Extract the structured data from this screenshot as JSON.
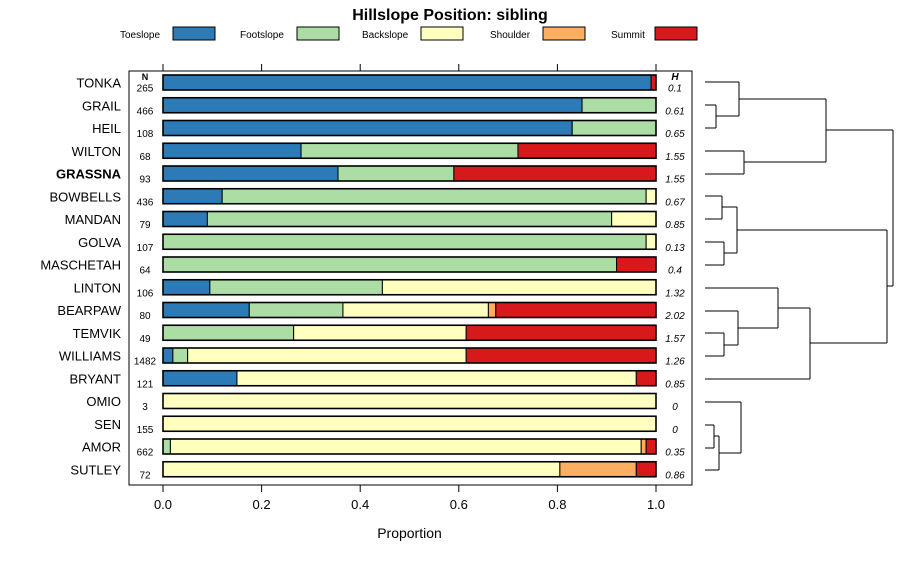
{
  "chart_data": {
    "type": "bar",
    "stacked": true,
    "orientation": "horizontal",
    "title": "Hillslope Position: sibling",
    "xlabel": "Proportion",
    "xlim": [
      0,
      1
    ],
    "x_ticks": [
      "0.0",
      "0.2",
      "0.4",
      "0.6",
      "0.8",
      "1.0"
    ],
    "legend_position": "top",
    "legend": [
      {
        "name": "Toeslope",
        "color": "#2c7bb6"
      },
      {
        "name": "Footslope",
        "color": "#abdda4"
      },
      {
        "name": "Backslope",
        "color": "#ffffbf"
      },
      {
        "name": "Shoulder",
        "color": "#fdae61"
      },
      {
        "name": "Summit",
        "color": "#d7191c"
      }
    ],
    "n_header": "N",
    "h_header": "H",
    "highlight": "GRASSNA",
    "categories": [
      "TONKA",
      "GRAIL",
      "HEIL",
      "WILTON",
      "GRASSNA",
      "BOWBELLS",
      "MANDAN",
      "GOLVA",
      "MASCHETAH",
      "LINTON",
      "BEARPAW",
      "TEMVIK",
      "WILLIAMS",
      "BRYANT",
      "OMIO",
      "SEN",
      "AMOR",
      "SUTLEY"
    ],
    "n": [
      "265",
      "466",
      "108",
      "68",
      "93",
      "436",
      "79",
      "107",
      "64",
      "106",
      "80",
      "49",
      "1482",
      "121",
      "3",
      "155",
      "662",
      "72"
    ],
    "h": [
      "0.1",
      "0.61",
      "0.65",
      "1.55",
      "1.55",
      "0.67",
      "0.85",
      "0.13",
      "0.4",
      "1.32",
      "2.02",
      "1.57",
      "1.26",
      "0.85",
      "0",
      "0",
      "0.35",
      "0.86"
    ],
    "series": [
      {
        "name": "Toeslope",
        "values": [
          0.99,
          0.85,
          0.83,
          0.28,
          0.355,
          0.12,
          0.09,
          0,
          0,
          0.095,
          0.175,
          0,
          0.02,
          0.15,
          0,
          0,
          0,
          0
        ]
      },
      {
        "name": "Footslope",
        "values": [
          0,
          0.15,
          0.17,
          0.44,
          0.235,
          0.86,
          0.82,
          0.98,
          0.92,
          0.35,
          0.19,
          0.265,
          0.03,
          0,
          0,
          0,
          0.015,
          0
        ]
      },
      {
        "name": "Backslope",
        "values": [
          0,
          0,
          0,
          0,
          0,
          0.02,
          0.09,
          0.02,
          0,
          0.555,
          0.295,
          0.35,
          0.565,
          0.81,
          1.0,
          1.0,
          0.955,
          0.805
        ]
      },
      {
        "name": "Shoulder",
        "values": [
          0,
          0,
          0,
          0,
          0,
          0,
          0,
          0,
          0,
          0,
          0.015,
          0,
          0,
          0,
          0,
          0,
          0.01,
          0.155
        ]
      },
      {
        "name": "Summit",
        "values": [
          0.01,
          0,
          0,
          0.28,
          0.41,
          0,
          0,
          0,
          0.08,
          0,
          0.325,
          0.385,
          0.385,
          0.04,
          0,
          0,
          0.02,
          0.04
        ]
      }
    ]
  }
}
